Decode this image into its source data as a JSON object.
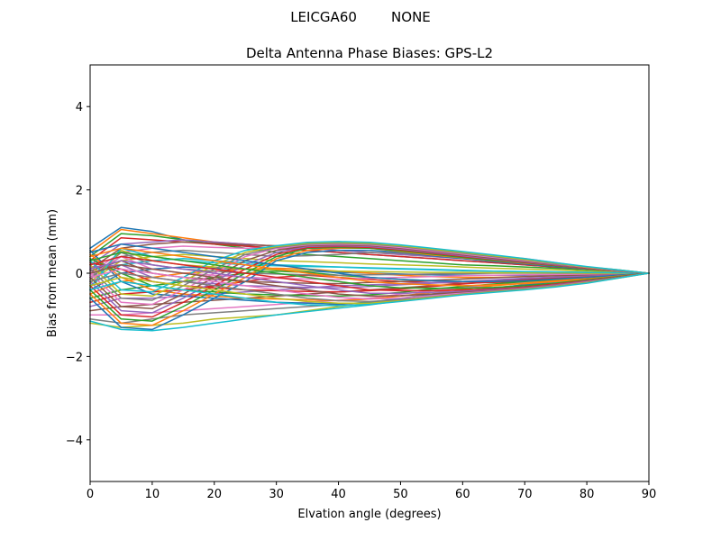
{
  "suptitle": "LEICGA60        NONE",
  "chart_data": {
    "type": "line",
    "title": "Delta Antenna Phase Biases: GPS-L2",
    "xlabel": "Elvation angle (degrees)",
    "ylabel": "Bias from mean (mm)",
    "xlim": [
      0,
      90
    ],
    "ylim": [
      -5,
      5
    ],
    "xticks": [
      0,
      10,
      20,
      30,
      40,
      50,
      60,
      70,
      80,
      90
    ],
    "xtick_labels": [
      "0",
      "10",
      "20",
      "30",
      "40",
      "50",
      "60",
      "70",
      "80",
      "90"
    ],
    "yticks": [
      -4,
      -2,
      0,
      2,
      4
    ],
    "ytick_labels": [
      "−4",
      "−2",
      "0",
      "2",
      "4"
    ],
    "grid": false,
    "legend": "none",
    "x": [
      0,
      5,
      10,
      15,
      20,
      25,
      30,
      35,
      40,
      45,
      50,
      55,
      60,
      65,
      70,
      75,
      80,
      85,
      90
    ],
    "series": [
      {
        "color": "#1f77b4",
        "values": [
          0.6,
          1.1,
          1.0,
          0.8,
          0.7,
          0.65,
          0.6,
          0.55,
          0.5,
          0.45,
          0.4,
          0.35,
          0.3,
          0.25,
          0.2,
          0.15,
          0.1,
          0.05,
          0.0
        ]
      },
      {
        "color": "#ff7f0e",
        "values": [
          0.5,
          1.05,
          0.95,
          0.85,
          0.75,
          0.7,
          0.65,
          0.6,
          0.55,
          0.5,
          0.45,
          0.4,
          0.35,
          0.3,
          0.25,
          0.2,
          0.15,
          0.08,
          0.0
        ]
      },
      {
        "color": "#2ca02c",
        "values": [
          0.4,
          0.95,
          0.9,
          0.8,
          0.7,
          0.6,
          0.5,
          0.45,
          0.4,
          0.35,
          0.3,
          0.25,
          0.2,
          0.18,
          0.15,
          0.12,
          0.08,
          0.04,
          0.0
        ]
      },
      {
        "color": "#d62728",
        "values": [
          0.3,
          0.85,
          0.8,
          0.75,
          0.7,
          0.65,
          0.6,
          0.55,
          0.5,
          0.45,
          0.4,
          0.35,
          0.3,
          0.25,
          0.2,
          0.15,
          0.1,
          0.05,
          0.0
        ]
      },
      {
        "color": "#9467bd",
        "values": [
          0.2,
          0.7,
          0.75,
          0.8,
          0.75,
          0.7,
          0.65,
          0.6,
          0.55,
          0.5,
          0.45,
          0.4,
          0.35,
          0.3,
          0.25,
          0.18,
          0.12,
          0.06,
          0.0
        ]
      },
      {
        "color": "#8c564b",
        "values": [
          0.1,
          0.6,
          0.7,
          0.75,
          0.72,
          0.68,
          0.66,
          0.64,
          0.62,
          0.6,
          0.55,
          0.5,
          0.45,
          0.38,
          0.3,
          0.22,
          0.15,
          0.07,
          0.0
        ]
      },
      {
        "color": "#e377c2",
        "values": [
          0.0,
          0.5,
          0.6,
          0.65,
          0.62,
          0.6,
          0.6,
          0.62,
          0.65,
          0.68,
          0.62,
          0.55,
          0.48,
          0.42,
          0.35,
          0.25,
          0.15,
          0.07,
          0.0
        ]
      },
      {
        "color": "#7f7f7f",
        "values": [
          -0.1,
          0.4,
          0.5,
          0.55,
          0.5,
          0.45,
          0.4,
          0.42,
          0.45,
          0.5,
          0.48,
          0.42,
          0.36,
          0.3,
          0.24,
          0.18,
          0.12,
          0.06,
          0.0
        ]
      },
      {
        "color": "#bcbd22",
        "values": [
          -0.2,
          0.3,
          0.4,
          0.45,
          0.4,
          0.35,
          0.3,
          0.28,
          0.25,
          0.22,
          0.2,
          0.18,
          0.15,
          0.12,
          0.1,
          0.08,
          0.05,
          0.02,
          0.0
        ]
      },
      {
        "color": "#17becf",
        "values": [
          -0.3,
          0.2,
          0.3,
          0.35,
          0.3,
          0.25,
          0.2,
          0.18,
          0.15,
          0.12,
          0.1,
          0.08,
          0.06,
          0.05,
          0.04,
          0.03,
          0.02,
          0.01,
          0.0
        ]
      },
      {
        "color": "#1f77b4",
        "values": [
          -0.4,
          0.0,
          0.1,
          0.15,
          0.12,
          0.1,
          0.08,
          0.05,
          0.02,
          0.0,
          -0.02,
          -0.04,
          -0.05,
          -0.05,
          -0.05,
          -0.04,
          -0.03,
          -0.01,
          0.0
        ]
      },
      {
        "color": "#ff7f0e",
        "values": [
          -0.5,
          -0.2,
          -0.1,
          0.0,
          0.05,
          0.1,
          0.12,
          0.1,
          0.05,
          0.0,
          -0.05,
          -0.08,
          -0.1,
          -0.1,
          -0.08,
          -0.06,
          -0.04,
          -0.02,
          0.0
        ]
      },
      {
        "color": "#2ca02c",
        "values": [
          -0.6,
          -0.4,
          -0.3,
          -0.2,
          -0.1,
          0.0,
          0.05,
          0.02,
          -0.05,
          -0.1,
          -0.15,
          -0.18,
          -0.2,
          -0.18,
          -0.15,
          -0.1,
          -0.06,
          -0.03,
          0.0
        ]
      },
      {
        "color": "#d62728",
        "values": [
          -0.7,
          -0.5,
          -0.45,
          -0.4,
          -0.3,
          -0.2,
          -0.1,
          -0.05,
          -0.1,
          -0.15,
          -0.2,
          -0.22,
          -0.24,
          -0.22,
          -0.2,
          -0.15,
          -0.1,
          -0.05,
          0.0
        ]
      },
      {
        "color": "#9467bd",
        "values": [
          -0.8,
          -0.6,
          -0.6,
          -0.55,
          -0.5,
          -0.45,
          -0.4,
          -0.35,
          -0.3,
          -0.28,
          -0.25,
          -0.22,
          -0.2,
          -0.18,
          -0.15,
          -0.12,
          -0.08,
          -0.04,
          0.0
        ]
      },
      {
        "color": "#8c564b",
        "values": [
          -0.9,
          -0.8,
          -0.75,
          -0.7,
          -0.65,
          -0.6,
          -0.55,
          -0.5,
          -0.45,
          -0.4,
          -0.35,
          -0.3,
          -0.25,
          -0.2,
          -0.16,
          -0.12,
          -0.08,
          -0.04,
          0.0
        ]
      },
      {
        "color": "#e377c2",
        "values": [
          -1.0,
          -1.0,
          -0.95,
          -0.9,
          -0.85,
          -0.8,
          -0.75,
          -0.7,
          -0.65,
          -0.6,
          -0.5,
          -0.42,
          -0.35,
          -0.28,
          -0.22,
          -0.16,
          -0.1,
          -0.05,
          0.0
        ]
      },
      {
        "color": "#7f7f7f",
        "values": [
          -1.1,
          -1.2,
          -1.1,
          -1.0,
          -0.95,
          -0.9,
          -0.85,
          -0.8,
          -0.75,
          -0.7,
          -0.6,
          -0.5,
          -0.42,
          -0.35,
          -0.28,
          -0.2,
          -0.12,
          -0.06,
          0.0
        ]
      },
      {
        "color": "#bcbd22",
        "values": [
          -1.2,
          -1.3,
          -1.25,
          -1.2,
          -1.1,
          -1.05,
          -1.0,
          -0.9,
          -0.8,
          -0.72,
          -0.62,
          -0.52,
          -0.44,
          -0.36,
          -0.28,
          -0.2,
          -0.12,
          -0.06,
          0.0
        ]
      },
      {
        "color": "#17becf",
        "values": [
          -1.15,
          -1.35,
          -1.38,
          -1.3,
          -1.2,
          -1.1,
          -1.0,
          -0.92,
          -0.84,
          -0.76,
          -0.66,
          -0.56,
          -0.46,
          -0.38,
          -0.3,
          -0.22,
          -0.14,
          -0.07,
          0.0
        ]
      },
      {
        "color": "#1f77b4",
        "values": [
          0.55,
          -0.2,
          -0.5,
          -0.55,
          -0.6,
          -0.65,
          -0.7,
          -0.72,
          -0.74,
          -0.7,
          -0.62,
          -0.52,
          -0.44,
          -0.36,
          -0.28,
          -0.2,
          -0.12,
          -0.06,
          0.0
        ]
      },
      {
        "color": "#ff7f0e",
        "values": [
          0.45,
          -0.1,
          -0.4,
          -0.5,
          -0.55,
          -0.6,
          -0.62,
          -0.64,
          -0.66,
          -0.62,
          -0.55,
          -0.46,
          -0.38,
          -0.3,
          -0.24,
          -0.18,
          -0.11,
          -0.05,
          0.0
        ]
      },
      {
        "color": "#2ca02c",
        "values": [
          0.35,
          0.0,
          -0.3,
          -0.4,
          -0.45,
          -0.5,
          -0.52,
          -0.54,
          -0.55,
          -0.52,
          -0.46,
          -0.38,
          -0.32,
          -0.26,
          -0.2,
          -0.15,
          -0.1,
          -0.05,
          0.0
        ]
      },
      {
        "color": "#d62728",
        "values": [
          0.25,
          0.1,
          -0.2,
          -0.3,
          -0.35,
          -0.4,
          -0.42,
          -0.44,
          -0.45,
          -0.42,
          -0.38,
          -0.32,
          -0.26,
          -0.2,
          -0.16,
          -0.12,
          -0.08,
          -0.04,
          0.0
        ]
      },
      {
        "color": "#9467bd",
        "values": [
          0.15,
          0.2,
          -0.1,
          -0.2,
          -0.25,
          -0.3,
          -0.32,
          -0.34,
          -0.35,
          -0.32,
          -0.28,
          -0.24,
          -0.2,
          -0.16,
          -0.12,
          -0.09,
          -0.06,
          -0.03,
          0.0
        ]
      },
      {
        "color": "#8c564b",
        "values": [
          0.05,
          0.3,
          0.0,
          -0.1,
          -0.15,
          -0.2,
          -0.22,
          -0.24,
          -0.25,
          -0.22,
          -0.2,
          -0.17,
          -0.14,
          -0.11,
          -0.08,
          -0.06,
          -0.04,
          -0.02,
          0.0
        ]
      },
      {
        "color": "#e377c2",
        "values": [
          -0.05,
          0.4,
          0.1,
          0.0,
          -0.05,
          -0.1,
          -0.12,
          -0.14,
          -0.15,
          -0.12,
          -0.1,
          -0.08,
          -0.06,
          -0.05,
          -0.04,
          -0.03,
          -0.02,
          -0.01,
          0.0
        ]
      },
      {
        "color": "#7f7f7f",
        "values": [
          -0.15,
          0.5,
          0.2,
          0.1,
          0.05,
          0.0,
          -0.02,
          -0.04,
          -0.05,
          -0.04,
          -0.03,
          -0.02,
          -0.01,
          0.0,
          0.0,
          0.0,
          0.0,
          0.0,
          0.0
        ]
      },
      {
        "color": "#bcbd22",
        "values": [
          -0.25,
          0.55,
          0.3,
          0.2,
          0.15,
          0.1,
          0.08,
          0.06,
          0.05,
          0.04,
          0.03,
          0.02,
          0.02,
          0.01,
          0.01,
          0.01,
          0.0,
          0.0,
          0.0
        ]
      },
      {
        "color": "#17becf",
        "values": [
          -0.35,
          0.6,
          0.4,
          0.3,
          0.25,
          0.2,
          0.18,
          0.16,
          0.15,
          0.13,
          0.11,
          0.09,
          0.07,
          0.05,
          0.04,
          0.03,
          0.02,
          0.01,
          0.0
        ]
      },
      {
        "color": "#1f77b4",
        "values": [
          -0.6,
          -1.3,
          -1.35,
          -1.0,
          -0.6,
          -0.2,
          0.3,
          0.5,
          0.55,
          0.55,
          0.5,
          0.42,
          0.35,
          0.28,
          0.22,
          0.16,
          0.1,
          0.05,
          0.0
        ]
      },
      {
        "color": "#ff7f0e",
        "values": [
          -0.5,
          -1.2,
          -1.25,
          -0.9,
          -0.5,
          -0.1,
          0.35,
          0.55,
          0.6,
          0.6,
          0.52,
          0.44,
          0.37,
          0.3,
          0.24,
          0.18,
          0.11,
          0.05,
          0.0
        ]
      },
      {
        "color": "#2ca02c",
        "values": [
          -0.4,
          -1.1,
          -1.15,
          -0.8,
          -0.4,
          0.0,
          0.4,
          0.6,
          0.62,
          0.6,
          0.54,
          0.46,
          0.38,
          0.31,
          0.25,
          0.18,
          0.12,
          0.06,
          0.0
        ]
      },
      {
        "color": "#d62728",
        "values": [
          -0.3,
          -1.0,
          -1.05,
          -0.7,
          -0.3,
          0.1,
          0.45,
          0.62,
          0.64,
          0.62,
          0.56,
          0.48,
          0.4,
          0.33,
          0.26,
          0.19,
          0.12,
          0.06,
          0.0
        ]
      },
      {
        "color": "#9467bd",
        "values": [
          -0.2,
          -0.9,
          -0.95,
          -0.6,
          -0.2,
          0.2,
          0.5,
          0.64,
          0.66,
          0.64,
          0.58,
          0.5,
          0.42,
          0.34,
          0.27,
          0.2,
          0.13,
          0.06,
          0.0
        ]
      },
      {
        "color": "#8c564b",
        "values": [
          -0.1,
          -0.8,
          -0.85,
          -0.5,
          -0.1,
          0.3,
          0.55,
          0.66,
          0.68,
          0.66,
          0.6,
          0.52,
          0.44,
          0.36,
          0.28,
          0.21,
          0.13,
          0.07,
          0.0
        ]
      },
      {
        "color": "#e377c2",
        "values": [
          0.0,
          -0.7,
          -0.75,
          -0.4,
          0.0,
          0.4,
          0.6,
          0.68,
          0.7,
          0.68,
          0.62,
          0.54,
          0.46,
          0.38,
          0.3,
          0.22,
          0.14,
          0.07,
          0.0
        ]
      },
      {
        "color": "#7f7f7f",
        "values": [
          0.1,
          -0.6,
          -0.65,
          -0.3,
          0.1,
          0.45,
          0.62,
          0.7,
          0.72,
          0.7,
          0.64,
          0.56,
          0.48,
          0.4,
          0.32,
          0.23,
          0.15,
          0.07,
          0.0
        ]
      },
      {
        "color": "#bcbd22",
        "values": [
          0.2,
          -0.5,
          -0.55,
          -0.2,
          0.2,
          0.5,
          0.64,
          0.72,
          0.74,
          0.72,
          0.66,
          0.58,
          0.5,
          0.42,
          0.33,
          0.24,
          0.15,
          0.08,
          0.0
        ]
      },
      {
        "color": "#17becf",
        "values": [
          0.3,
          -0.4,
          -0.45,
          -0.1,
          0.3,
          0.55,
          0.66,
          0.74,
          0.76,
          0.74,
          0.68,
          0.6,
          0.52,
          0.44,
          0.35,
          0.25,
          0.16,
          0.08,
          0.0
        ]
      },
      {
        "color": "#1f77b4",
        "values": [
          0.5,
          0.7,
          0.6,
          0.5,
          0.4,
          0.3,
          0.2,
          0.1,
          0.0,
          -0.1,
          -0.15,
          -0.18,
          -0.2,
          -0.2,
          -0.18,
          -0.14,
          -0.1,
          -0.05,
          0.0
        ]
      },
      {
        "color": "#ff7f0e",
        "values": [
          0.4,
          0.6,
          0.5,
          0.4,
          0.3,
          0.2,
          0.1,
          0.0,
          -0.1,
          -0.2,
          -0.25,
          -0.28,
          -0.3,
          -0.28,
          -0.25,
          -0.2,
          -0.14,
          -0.07,
          0.0
        ]
      },
      {
        "color": "#2ca02c",
        "values": [
          0.3,
          0.5,
          0.4,
          0.3,
          0.2,
          0.1,
          0.0,
          -0.1,
          -0.2,
          -0.3,
          -0.35,
          -0.36,
          -0.36,
          -0.34,
          -0.3,
          -0.24,
          -0.16,
          -0.08,
          0.0
        ]
      },
      {
        "color": "#d62728",
        "values": [
          0.2,
          0.4,
          0.3,
          0.2,
          0.1,
          0.0,
          -0.1,
          -0.2,
          -0.3,
          -0.4,
          -0.42,
          -0.42,
          -0.4,
          -0.38,
          -0.33,
          -0.26,
          -0.18,
          -0.09,
          0.0
        ]
      },
      {
        "color": "#9467bd",
        "values": [
          0.1,
          0.3,
          0.2,
          0.1,
          0.0,
          -0.1,
          -0.2,
          -0.3,
          -0.4,
          -0.48,
          -0.48,
          -0.46,
          -0.44,
          -0.4,
          -0.35,
          -0.28,
          -0.19,
          -0.1,
          0.0
        ]
      },
      {
        "color": "#8c564b",
        "values": [
          0.0,
          0.2,
          0.1,
          0.0,
          -0.1,
          -0.2,
          -0.3,
          -0.4,
          -0.5,
          -0.55,
          -0.54,
          -0.5,
          -0.46,
          -0.42,
          -0.36,
          -0.29,
          -0.2,
          -0.1,
          0.0
        ]
      },
      {
        "color": "#e377c2",
        "values": [
          -0.1,
          0.1,
          0.0,
          -0.1,
          -0.2,
          -0.3,
          -0.4,
          -0.5,
          -0.58,
          -0.62,
          -0.6,
          -0.54,
          -0.48,
          -0.43,
          -0.37,
          -0.3,
          -0.21,
          -0.11,
          0.0
        ]
      },
      {
        "color": "#7f7f7f",
        "values": [
          -0.2,
          0.0,
          -0.1,
          -0.2,
          -0.3,
          -0.4,
          -0.5,
          -0.6,
          -0.66,
          -0.68,
          -0.64,
          -0.57,
          -0.5,
          -0.44,
          -0.38,
          -0.31,
          -0.22,
          -0.11,
          0.0
        ]
      },
      {
        "color": "#bcbd22",
        "values": [
          -0.3,
          -0.1,
          -0.2,
          -0.3,
          -0.4,
          -0.5,
          -0.6,
          -0.68,
          -0.72,
          -0.72,
          -0.66,
          -0.58,
          -0.51,
          -0.45,
          -0.39,
          -0.32,
          -0.23,
          -0.12,
          0.0
        ]
      },
      {
        "color": "#17becf",
        "values": [
          -0.4,
          -0.2,
          -0.3,
          -0.4,
          -0.5,
          -0.6,
          -0.7,
          -0.76,
          -0.78,
          -0.75,
          -0.68,
          -0.6,
          -0.52,
          -0.46,
          -0.4,
          -0.33,
          -0.24,
          -0.12,
          0.0
        ]
      }
    ]
  }
}
